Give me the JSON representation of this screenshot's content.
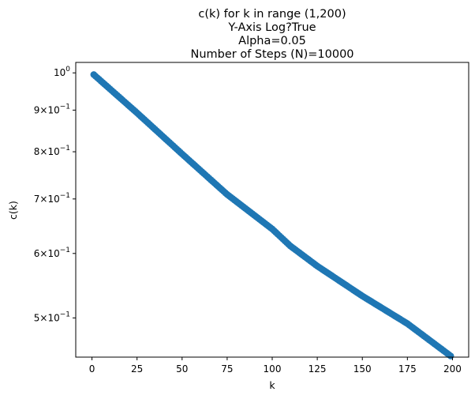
{
  "chart_data": {
    "type": "scatter",
    "title_lines": [
      "c(k) for k in range (1,200)",
      "Y-Axis Log?True",
      "Alpha=0.05",
      "Number of Steps (N)=10000"
    ],
    "xlabel": "k",
    "ylabel": "c(k)",
    "xlim": [
      -9,
      209
    ],
    "ylim": [
      0.4475,
      1.03
    ],
    "y_scale": "log",
    "grid": false,
    "x_ticks": [
      {
        "value": 0,
        "label": "0"
      },
      {
        "value": 25,
        "label": "25"
      },
      {
        "value": 50,
        "label": "50"
      },
      {
        "value": 75,
        "label": "75"
      },
      {
        "value": 100,
        "label": "100"
      },
      {
        "value": 125,
        "label": "125"
      },
      {
        "value": 150,
        "label": "150"
      },
      {
        "value": 175,
        "label": "175"
      },
      {
        "value": 200,
        "label": "200"
      }
    ],
    "y_ticks": [
      {
        "value": 1.0,
        "mant": "10",
        "exp": "0"
      },
      {
        "value": 0.9,
        "mant": "9×10",
        "exp": "−1"
      },
      {
        "value": 0.8,
        "mant": "8×10",
        "exp": "−1"
      },
      {
        "value": 0.7,
        "mant": "7×10",
        "exp": "−1"
      },
      {
        "value": 0.6,
        "mant": "6×10",
        "exp": "−1"
      },
      {
        "value": 0.5,
        "mant": "5×10",
        "exp": "−1"
      }
    ],
    "series": [
      {
        "color": "#1f77b4",
        "x": [
          1,
          25,
          50,
          75,
          100,
          110,
          125,
          150,
          175,
          199
        ],
        "y": [
          0.995,
          0.893,
          0.795,
          0.709,
          0.643,
          0.613,
          0.579,
          0.532,
          0.492,
          0.449
        ]
      }
    ]
  }
}
